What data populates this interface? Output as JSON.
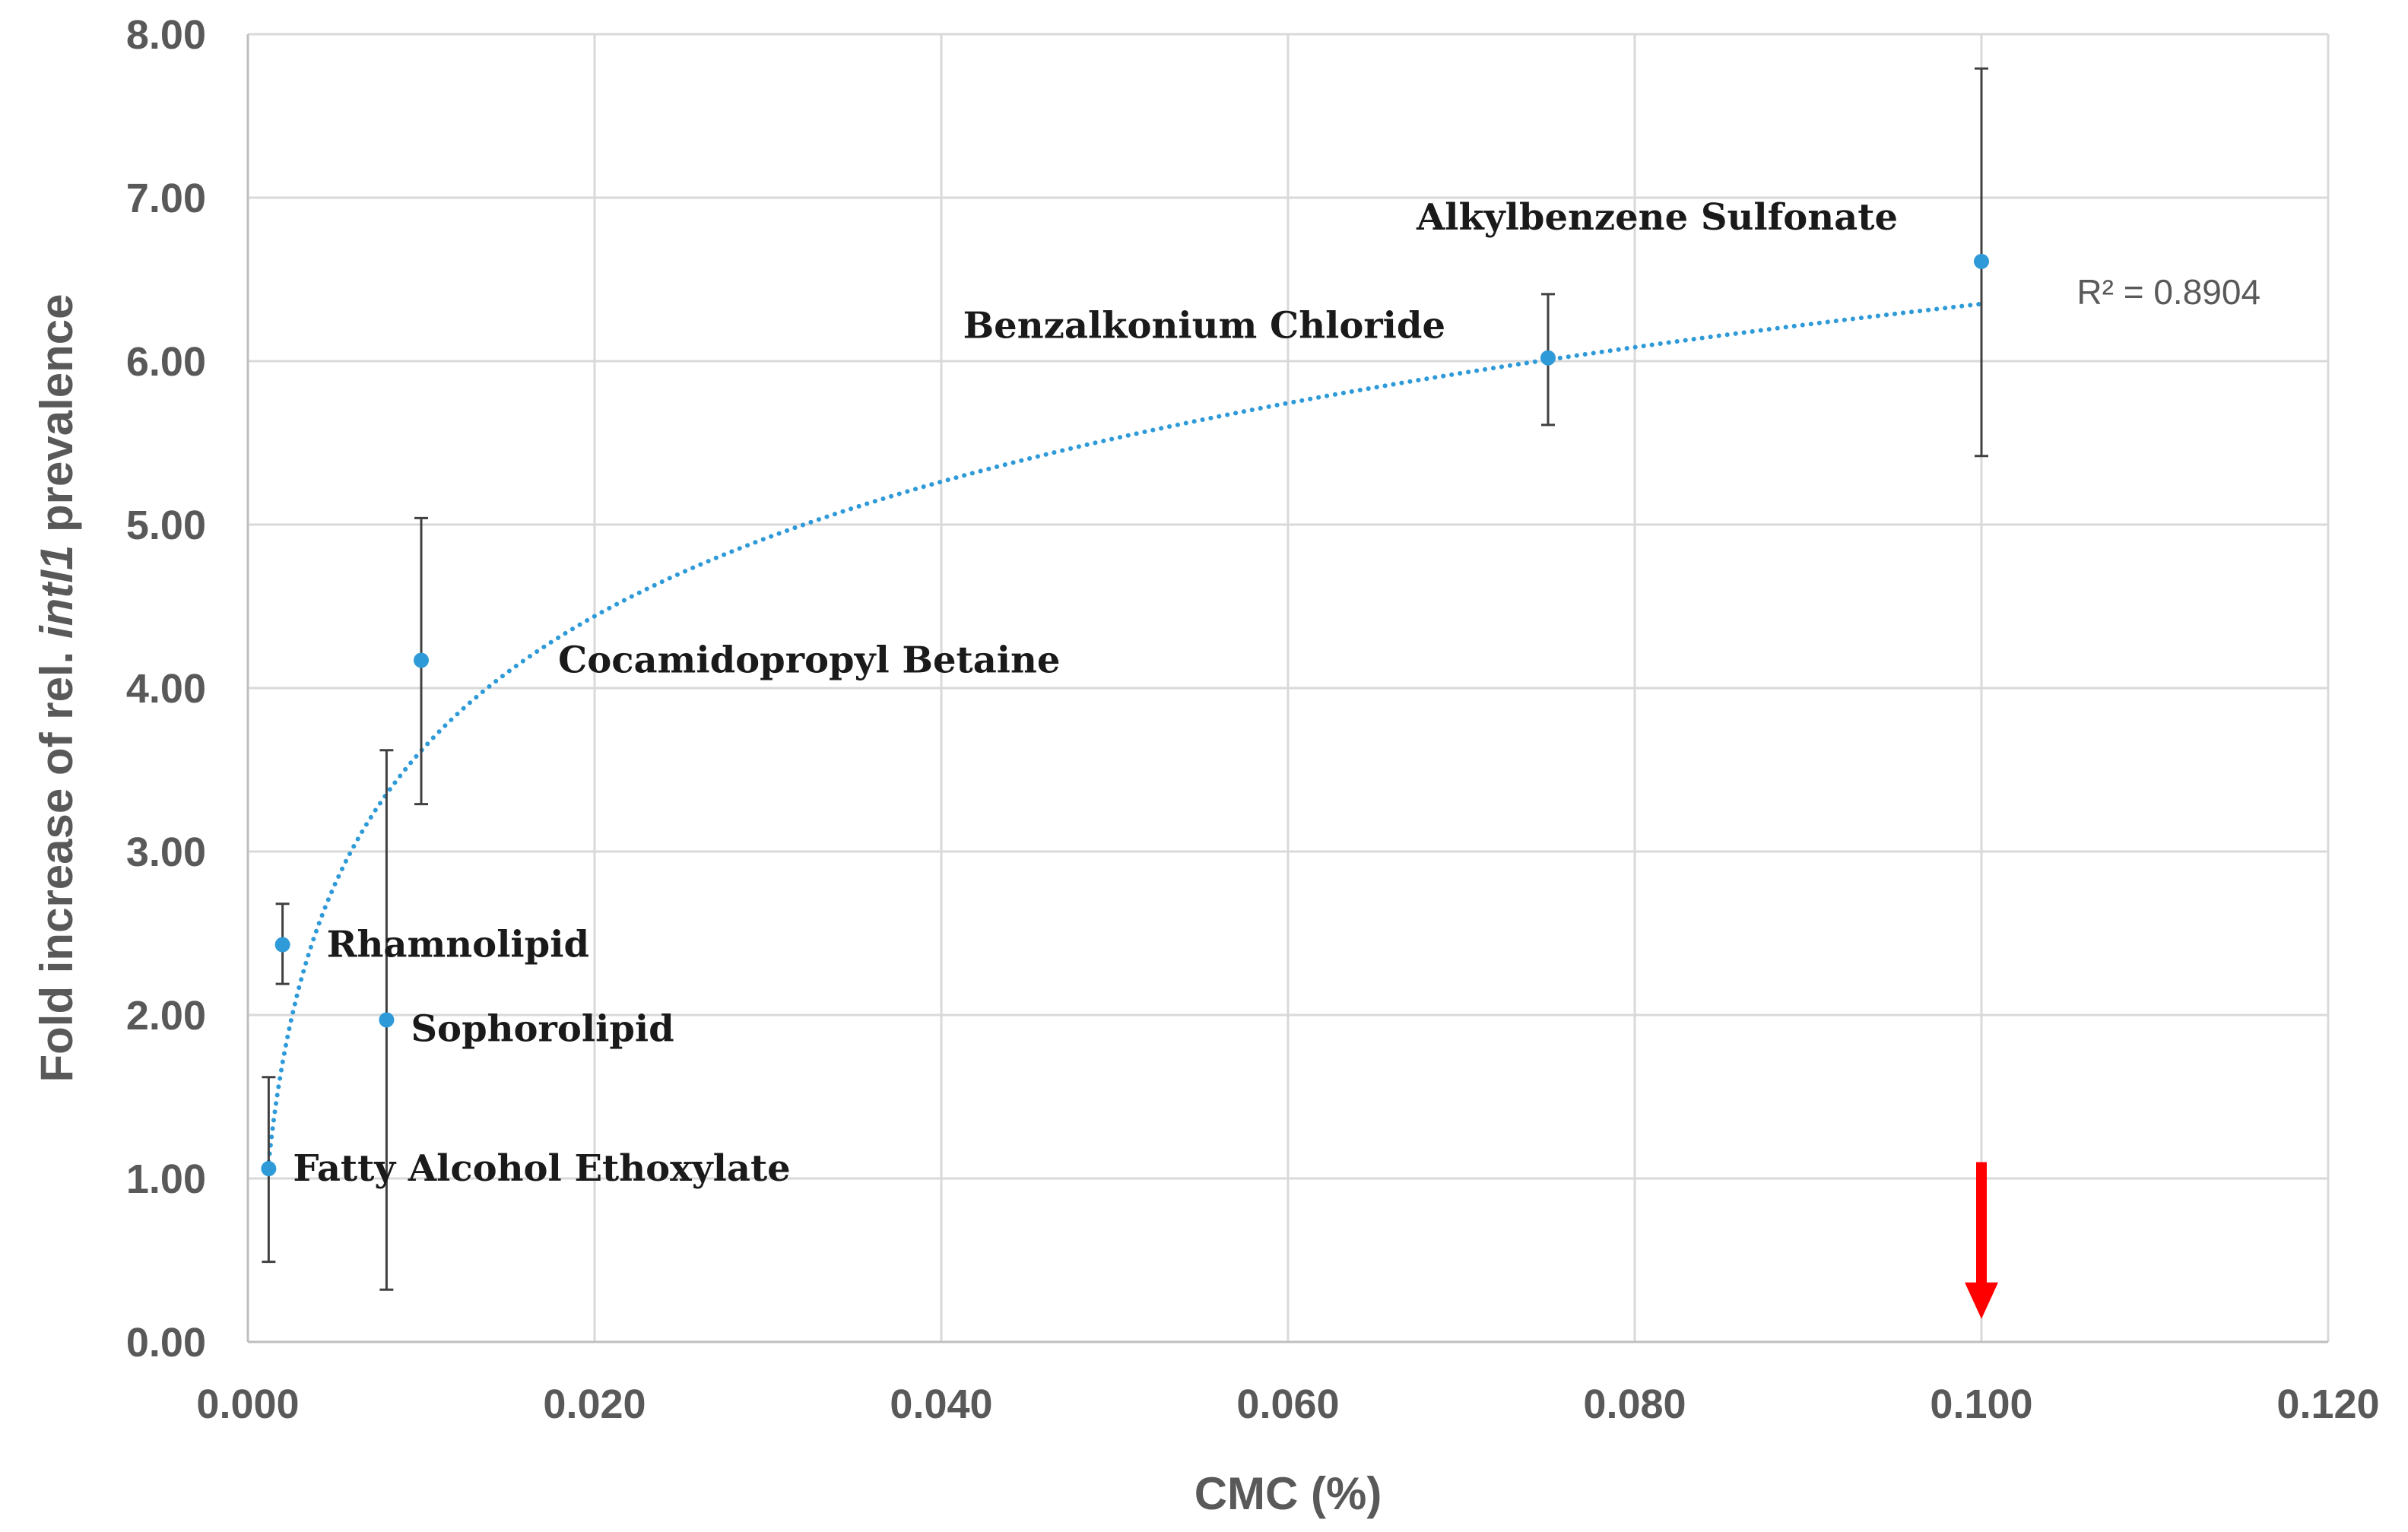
{
  "chart_data": {
    "type": "scatter",
    "title": "",
    "xlabel": "CMC (%)",
    "ylabel_prefix": "Fold increase of rel. ",
    "ylabel_italic": "intI1",
    "ylabel_suffix": " prevalence",
    "xlim": [
      0,
      0.12
    ],
    "ylim": [
      0,
      8
    ],
    "x_ticks": [
      0,
      0.02,
      0.04,
      0.06,
      0.08,
      0.1,
      0.12
    ],
    "x_tick_labels": [
      "0.000",
      "0.020",
      "0.040",
      "0.060",
      "0.080",
      "0.100",
      "0.120"
    ],
    "y_ticks": [
      0,
      1,
      2,
      3,
      4,
      5,
      6,
      7,
      8
    ],
    "y_tick_labels": [
      "0.00",
      "1.00",
      "2.00",
      "3.00",
      "4.00",
      "5.00",
      "6.00",
      "7.00",
      "8.00"
    ],
    "grid": true,
    "points": [
      {
        "label": "Fatty Alcohol Ethoxylate",
        "x": 0.0012,
        "y": 1.06,
        "err_low": 0.49,
        "err_high": 1.62
      },
      {
        "label": "Rhamnolipid",
        "x": 0.002,
        "y": 2.43,
        "err_low": 2.19,
        "err_high": 2.68
      },
      {
        "label": "Sophorolipid",
        "x": 0.008,
        "y": 1.97,
        "err_low": 0.32,
        "err_high": 3.62
      },
      {
        "label": "Cocamidopropyl Betaine",
        "x": 0.01,
        "y": 4.17,
        "err_low": 3.29,
        "err_high": 5.04
      },
      {
        "label": "Benzalkonium Chloride",
        "x": 0.075,
        "y": 6.02,
        "err_low": 5.61,
        "err_high": 6.41
      },
      {
        "label": "Alkylbenzene Sulfonate",
        "x": 0.1,
        "y": 6.61,
        "err_low": 5.42,
        "err_high": 7.79
      }
    ],
    "trendline": {
      "type": "logarithmic",
      "x_start": 0.0012,
      "x_end": 0.1,
      "y_start": 1.1,
      "y_end": 6.35,
      "r2_label": "R² = 0.8904"
    },
    "arrow": {
      "x": 0.1,
      "y_from": 1.1,
      "y_to": 0.15
    },
    "colors": {
      "point": "#2E9AD8",
      "trendline": "#2E9AD8",
      "error_bar": "#404040",
      "arrow": "#FF0000",
      "grid": "#D9D9D9",
      "text": "#595959"
    }
  }
}
